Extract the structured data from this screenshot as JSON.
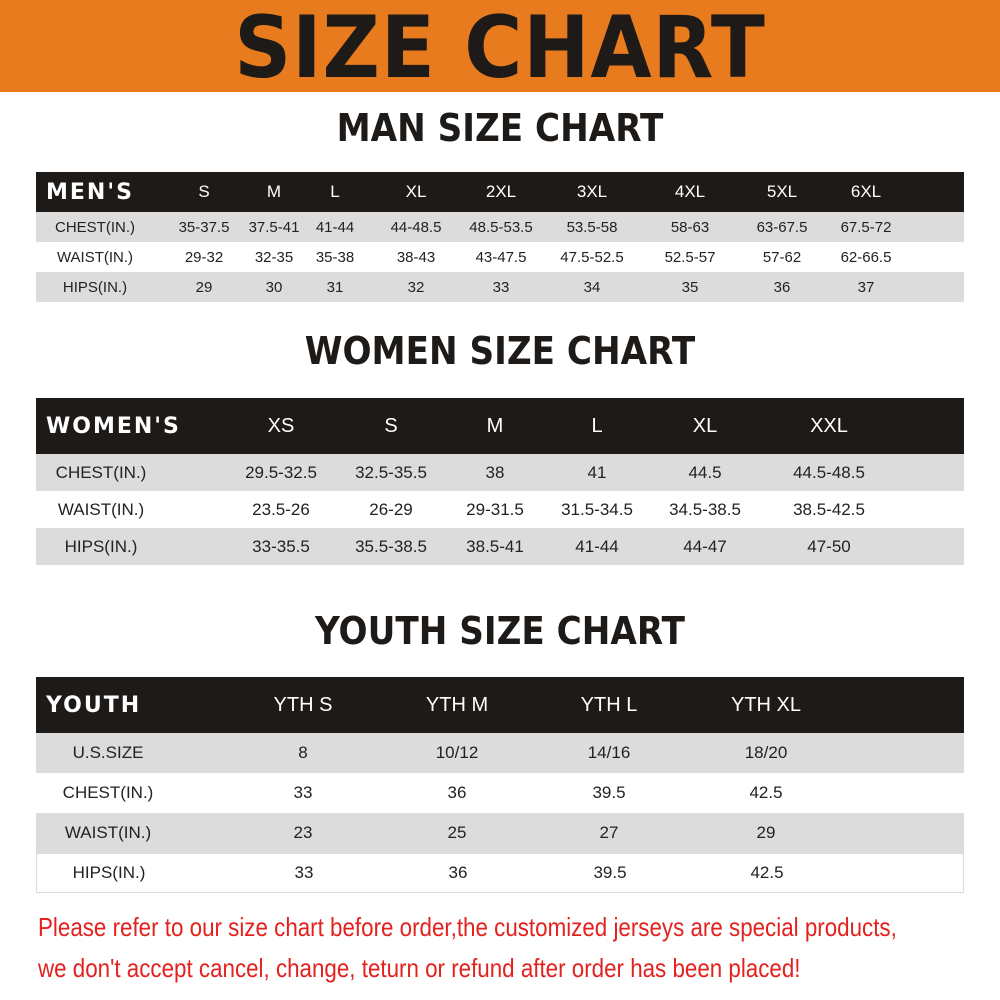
{
  "banner": {
    "title": "SIZE CHART",
    "color": "#e87b1e"
  },
  "men": {
    "title": "MAN SIZE CHART",
    "corner": "MEN'S",
    "sizes": [
      "S",
      "M",
      "L",
      "XL",
      "2XL",
      "3XL",
      "4XL",
      "5XL",
      "6XL"
    ],
    "rows": [
      {
        "label": "CHEST(IN.)",
        "values": [
          "35-37.5",
          "37.5-41",
          "41-44",
          "44-48.5",
          "48.5-53.5",
          "53.5-58",
          "58-63",
          "63-67.5",
          "67.5-72"
        ]
      },
      {
        "label": "WAIST(IN.)",
        "values": [
          "29-32",
          "32-35",
          "35-38",
          "38-43",
          "43-47.5",
          "47.5-52.5",
          "52.5-57",
          "57-62",
          "62-66.5"
        ]
      },
      {
        "label": "HIPS(IN.)",
        "values": [
          "29",
          "30",
          "31",
          "32",
          "33",
          "34",
          "35",
          "36",
          "37"
        ]
      }
    ]
  },
  "women": {
    "title": "WOMEN SIZE CHART",
    "corner": "WOMEN'S",
    "sizes": [
      "XS",
      "S",
      "M",
      "L",
      "XL",
      "XXL"
    ],
    "rows": [
      {
        "label": "CHEST(IN.)",
        "values": [
          "29.5-32.5",
          "32.5-35.5",
          "38",
          "41",
          "44.5",
          "44.5-48.5"
        ]
      },
      {
        "label": "WAIST(IN.)",
        "values": [
          "23.5-26",
          "26-29",
          "29-31.5",
          "31.5-34.5",
          "34.5-38.5",
          "38.5-42.5"
        ]
      },
      {
        "label": "HIPS(IN.)",
        "values": [
          "33-35.5",
          "35.5-38.5",
          "38.5-41",
          "41-44",
          "44-47",
          "47-50"
        ]
      }
    ]
  },
  "youth": {
    "title": "YOUTH SIZE CHART",
    "corner": "YOUTH",
    "sizes": [
      "YTH S",
      "YTH M",
      "YTH L",
      "YTH XL"
    ],
    "rows": [
      {
        "label": "U.S.SIZE",
        "values": [
          "8",
          "10/12",
          "14/16",
          "18/20"
        ]
      },
      {
        "label": "CHEST(IN.)",
        "values": [
          "33",
          "36",
          "39.5",
          "42.5"
        ]
      },
      {
        "label": "WAIST(IN.)",
        "values": [
          "23",
          "25",
          "27",
          "29"
        ]
      },
      {
        "label": "HIPS(IN.)",
        "values": [
          "33",
          "36",
          "39.5",
          "42.5"
        ]
      }
    ]
  },
  "notice": {
    "line1": "Please refer to our size chart before order,the customized jerseys are special products,",
    "line2": "we don't accept cancel, change, teturn or refund after order has been placed!",
    "color": "#e3221f"
  }
}
